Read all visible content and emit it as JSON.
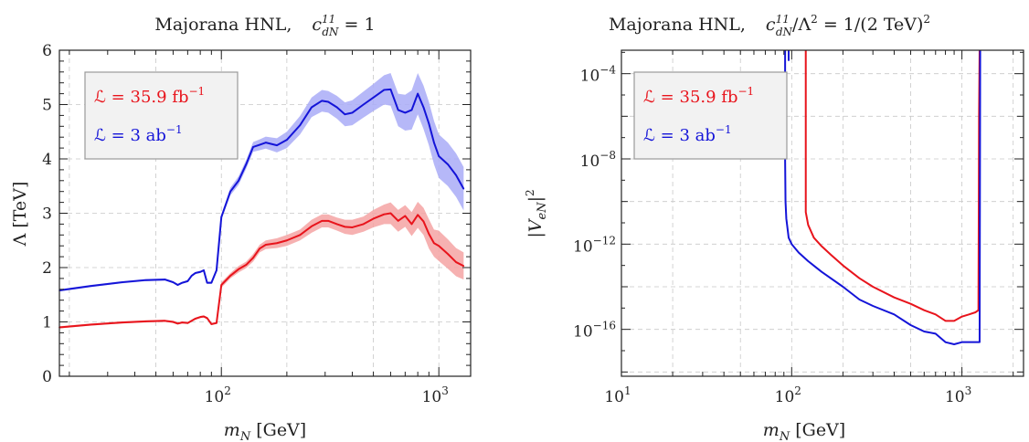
{
  "colors": {
    "red": "#e8141c",
    "blue": "#1414d8",
    "red_band": "#f5a3a3",
    "blue_band": "#a9abf7"
  },
  "chart_data": [
    {
      "type": "line",
      "title": "Majorana HNL,   c₍dN₎¹¹ = 1",
      "title_parts": {
        "prefix": "Majorana HNL,",
        "coef": "c",
        "sup": "11",
        "sub": "dN",
        "suffix": " = 1"
      },
      "xlabel": "m_N [GeV]",
      "xlabel_parts": {
        "main": "m",
        "sub": "N",
        "unit": " [GeV]"
      },
      "ylabel": "Λ [TeV]",
      "xscale": "log",
      "xlim": [
        18,
        1400
      ],
      "ylim": [
        0,
        6
      ],
      "xticks": [
        {
          "value": 100,
          "base": "10",
          "exp": "2"
        },
        {
          "value": 1000,
          "base": "10",
          "exp": "3"
        }
      ],
      "yticks": [
        "0",
        "1",
        "2",
        "3",
        "4",
        "5",
        "6"
      ],
      "grid": true,
      "legend": {
        "placement": "top-left",
        "entries": [
          {
            "text": "ℒ = 35.9 fb",
            "sup": "−1",
            "color": "#e8141c"
          },
          {
            "text": "ℒ = 3 ab",
            "sup": "−1",
            "color": "#1414d8"
          }
        ]
      },
      "series": [
        {
          "name": "ℒ = 35.9 fb⁻¹",
          "color": "#e8141c",
          "band_color": "#f5a3a3",
          "x": [
            18,
            25,
            35,
            45,
            55,
            60,
            63,
            66,
            70,
            73,
            76,
            80,
            83,
            86,
            90,
            95,
            100,
            110,
            120,
            130,
            140,
            150,
            160,
            180,
            200,
            230,
            260,
            290,
            310,
            340,
            370,
            400,
            450,
            500,
            560,
            600,
            650,
            700,
            750,
            800,
            850,
            900,
            950,
            1000,
            1100,
            1200,
            1300
          ],
          "values": [
            0.9,
            0.95,
            0.99,
            1.01,
            1.02,
            1.0,
            0.97,
            0.99,
            0.98,
            1.02,
            1.06,
            1.09,
            1.1,
            1.07,
            0.96,
            0.98,
            1.68,
            1.85,
            1.97,
            2.05,
            2.18,
            2.35,
            2.42,
            2.45,
            2.5,
            2.6,
            2.76,
            2.86,
            2.86,
            2.8,
            2.75,
            2.74,
            2.8,
            2.9,
            2.98,
            3.0,
            2.86,
            2.95,
            2.8,
            2.97,
            2.85,
            2.62,
            2.45,
            2.4,
            2.25,
            2.1,
            2.03
          ],
          "band_lo": [
            0.88,
            0.93,
            0.97,
            0.99,
            1.0,
            0.98,
            0.95,
            0.97,
            0.96,
            1.0,
            1.04,
            1.07,
            1.08,
            1.05,
            0.94,
            0.96,
            1.63,
            1.8,
            1.91,
            1.99,
            2.11,
            2.28,
            2.34,
            2.36,
            2.4,
            2.5,
            2.64,
            2.74,
            2.74,
            2.68,
            2.62,
            2.6,
            2.66,
            2.74,
            2.8,
            2.8,
            2.66,
            2.75,
            2.58,
            2.73,
            2.6,
            2.35,
            2.2,
            2.12,
            1.98,
            1.84,
            1.78
          ],
          "band_hi": [
            0.92,
            0.97,
            1.01,
            1.03,
            1.04,
            1.02,
            0.99,
            1.01,
            1.0,
            1.04,
            1.08,
            1.11,
            1.12,
            1.09,
            0.98,
            1.0,
            1.73,
            1.9,
            2.03,
            2.11,
            2.25,
            2.42,
            2.5,
            2.54,
            2.6,
            2.7,
            2.88,
            2.98,
            2.98,
            2.92,
            2.88,
            2.88,
            2.94,
            3.06,
            3.16,
            3.2,
            3.06,
            3.15,
            3.02,
            3.21,
            3.1,
            2.89,
            2.7,
            2.68,
            2.52,
            2.36,
            2.28
          ]
        },
        {
          "name": "ℒ = 3 ab⁻¹",
          "color": "#1414d8",
          "band_color": "#a9abf7",
          "x": [
            18,
            25,
            35,
            45,
            55,
            60,
            63,
            66,
            70,
            73,
            76,
            80,
            83,
            86,
            90,
            95,
            100,
            110,
            120,
            130,
            140,
            150,
            160,
            180,
            200,
            230,
            260,
            290,
            310,
            340,
            370,
            400,
            450,
            500,
            560,
            600,
            650,
            700,
            750,
            800,
            850,
            900,
            950,
            1000,
            1100,
            1200,
            1300
          ],
          "values": [
            1.58,
            1.66,
            1.73,
            1.77,
            1.78,
            1.73,
            1.68,
            1.72,
            1.75,
            1.85,
            1.9,
            1.92,
            1.95,
            1.72,
            1.72,
            1.95,
            2.93,
            3.4,
            3.6,
            3.9,
            4.22,
            4.26,
            4.3,
            4.25,
            4.35,
            4.62,
            4.95,
            5.07,
            5.05,
            4.95,
            4.82,
            4.85,
            5.0,
            5.13,
            5.27,
            5.28,
            4.9,
            4.85,
            4.9,
            5.2,
            4.95,
            4.65,
            4.3,
            4.05,
            3.9,
            3.7,
            3.45
          ],
          "band_lo": [
            1.56,
            1.64,
            1.71,
            1.75,
            1.76,
            1.71,
            1.66,
            1.7,
            1.73,
            1.83,
            1.88,
            1.9,
            1.93,
            1.7,
            1.7,
            1.92,
            2.88,
            3.33,
            3.52,
            3.82,
            4.13,
            4.16,
            4.19,
            4.12,
            4.2,
            4.45,
            4.77,
            4.87,
            4.85,
            4.74,
            4.6,
            4.62,
            4.76,
            4.88,
            5.0,
            4.98,
            4.6,
            4.52,
            4.54,
            4.82,
            4.55,
            4.25,
            3.9,
            3.65,
            3.5,
            3.3,
            3.05
          ],
          "band_hi": [
            1.6,
            1.68,
            1.75,
            1.79,
            1.8,
            1.75,
            1.7,
            1.74,
            1.77,
            1.87,
            1.92,
            1.94,
            1.97,
            1.74,
            1.74,
            1.98,
            2.98,
            3.47,
            3.68,
            3.98,
            4.31,
            4.36,
            4.41,
            4.38,
            4.5,
            4.79,
            5.13,
            5.27,
            5.25,
            5.16,
            5.04,
            5.08,
            5.24,
            5.38,
            5.54,
            5.58,
            5.2,
            5.18,
            5.26,
            5.58,
            5.35,
            5.05,
            4.7,
            4.45,
            4.3,
            4.1,
            3.85
          ]
        }
      ]
    },
    {
      "type": "line",
      "title": "Majorana HNL,   c₍dN₎¹¹/Λ² = 1/(2 TeV)²",
      "title_parts": {
        "prefix": "Majorana HNL,",
        "coef": "c",
        "sup": "11",
        "sub": "dN",
        "suffix": "/Λ",
        "sup2": "2",
        "suffix2": " = 1/(2 TeV)",
        "sup3": "2"
      },
      "xlabel": "m_N [GeV]",
      "xlabel_parts": {
        "main": "m",
        "sub": "N",
        "unit": " [GeV]"
      },
      "ylabel": "|V_eN|²",
      "ylabel_parts": {
        "main": "|V",
        "sub": "eN",
        "close": "|",
        "sup": "2"
      },
      "xscale": "log",
      "yscale": "log",
      "xlim": [
        10,
        2300
      ],
      "ylim": [
        -18.2,
        -2.9
      ],
      "xticks": [
        {
          "value": 10,
          "base": "10",
          "exp": "1"
        },
        {
          "value": 100,
          "base": "10",
          "exp": "2"
        },
        {
          "value": 1000,
          "base": "10",
          "exp": "3"
        }
      ],
      "yticks": [
        {
          "value": -4,
          "base": "10",
          "exp": "−4"
        },
        {
          "value": -8,
          "base": "10",
          "exp": "−8"
        },
        {
          "value": -12,
          "base": "10",
          "exp": "−12"
        },
        {
          "value": -16,
          "base": "10",
          "exp": "−16"
        }
      ],
      "grid": true,
      "legend": {
        "placement": "top-left",
        "entries": [
          {
            "text": "ℒ = 35.9 fb",
            "sup": "−1",
            "color": "#e8141c"
          },
          {
            "text": "ℒ = 3 ab",
            "sup": "−1",
            "color": "#1414d8"
          }
        ]
      },
      "series": [
        {
          "name": "ℒ = 35.9 fb⁻¹",
          "color": "#e8141c",
          "x": [
            121,
            121,
            125,
            135,
            150,
            170,
            200,
            250,
            300,
            400,
            500,
            600,
            700,
            800,
            900,
            1000,
            1100,
            1200,
            1250,
            1255,
            1260,
            1270
          ],
          "log10_values": [
            -2.9,
            -10.5,
            -11.1,
            -11.7,
            -12.1,
            -12.5,
            -13.0,
            -13.6,
            -14.0,
            -14.5,
            -14.8,
            -15.1,
            -15.3,
            -15.6,
            -15.6,
            -15.4,
            -15.3,
            -15.2,
            -15.1,
            -11.0,
            -6.0,
            -2.9
          ]
        },
        {
          "name": "ℒ = 3 ab⁻¹",
          "color": "#1414d8",
          "x": [
            91.5,
            91.5,
            92,
            93,
            96,
            100,
            110,
            125,
            150,
            200,
            250,
            300,
            400,
            500,
            600,
            700,
            800,
            900,
            1000,
            1100,
            1200,
            1270,
            1275,
            1280
          ],
          "log10_values": [
            -2.9,
            -8.0,
            -10.0,
            -10.8,
            -11.7,
            -12.0,
            -12.4,
            -12.8,
            -13.3,
            -14.0,
            -14.6,
            -14.9,
            -15.3,
            -15.8,
            -16.1,
            -16.2,
            -16.6,
            -16.7,
            -16.6,
            -16.6,
            -16.6,
            -16.6,
            -10.0,
            -2.9
          ]
        },
        {
          "name": "",
          "color": "#1414d8",
          "x": [
            96,
            96
          ],
          "log10_values": [
            -2.9,
            -3.4
          ]
        }
      ]
    }
  ]
}
